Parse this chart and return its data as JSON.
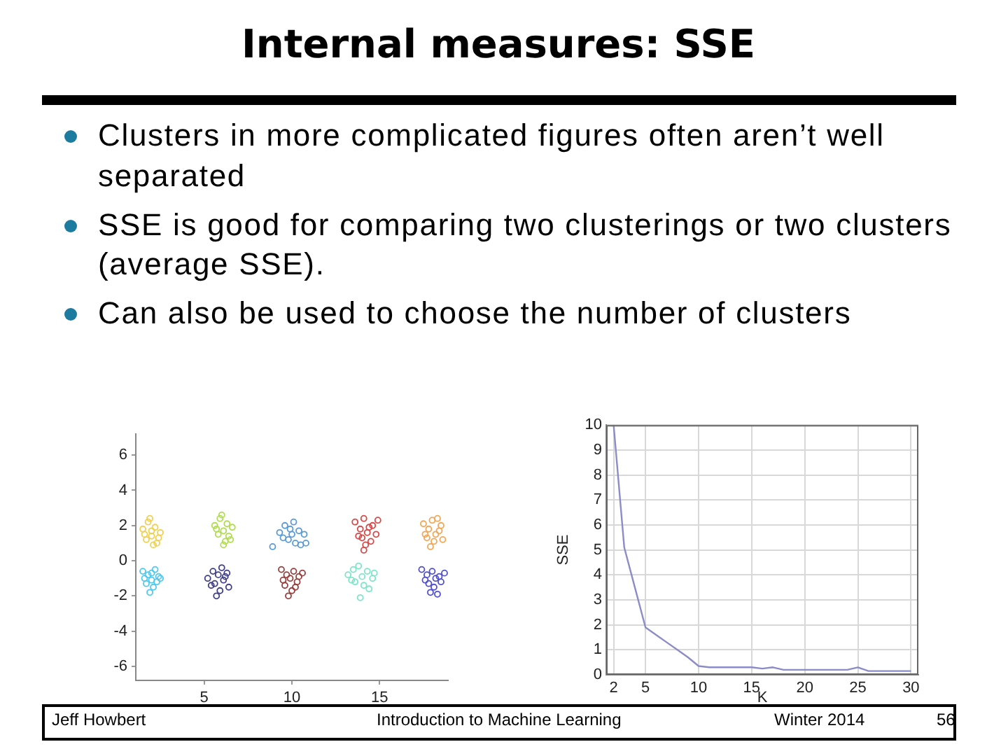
{
  "chart_data": [
    {
      "type": "other",
      "title": "Internal measures: SSE",
      "annotations": [
        "Clusters in more complicated figures often aren’t well separated",
        "SSE is good for comparing two clusterings or two clusters (average SSE).",
        "Can also be used to choose the number of clusters"
      ]
    },
    {
      "type": "scatter",
      "xlim": [
        1.1,
        18.9
      ],
      "ylim": [
        -6.8,
        7.2
      ],
      "xticks": [
        5,
        10,
        15
      ],
      "yticks": [
        -6,
        -4,
        -2,
        0,
        2,
        4,
        6
      ],
      "grid": false,
      "legend": false,
      "marker": "circle",
      "series": [
        {
          "color": "#f0d050",
          "x": [
            1.5,
            1.8,
            2.0,
            2.2,
            2.5,
            1.7,
            2.1,
            2.4,
            1.9,
            2.3,
            1.6,
            2.0
          ],
          "values": [
            1.8,
            2.2,
            1.4,
            1.9,
            1.6,
            1.2,
            0.9,
            1.3,
            2.4,
            1.0,
            1.5,
            1.7
          ]
        },
        {
          "color": "#b0dc50",
          "x": [
            5.6,
            5.9,
            6.1,
            6.3,
            6.6,
            5.8,
            6.2,
            6.4,
            6.0,
            6.5,
            5.7,
            6.1
          ],
          "values": [
            2.0,
            2.4,
            1.7,
            2.1,
            1.9,
            1.5,
            1.1,
            1.4,
            2.6,
            1.2,
            1.8,
            0.9
          ]
        },
        {
          "color": "#5b9bd5",
          "x": [
            9.3,
            9.6,
            9.9,
            10.1,
            10.4,
            10.7,
            9.8,
            10.2,
            10.5,
            9.5,
            10.0,
            10.8,
            8.9
          ],
          "values": [
            1.6,
            2.0,
            1.8,
            2.2,
            1.7,
            1.5,
            1.2,
            1.0,
            0.9,
            1.3,
            1.5,
            1.0,
            0.8
          ]
        },
        {
          "color": "#d84848",
          "x": [
            13.6,
            13.9,
            14.1,
            14.3,
            14.6,
            14.8,
            14.0,
            14.2,
            14.5,
            13.8,
            14.4,
            14.9,
            14.1
          ],
          "values": [
            2.2,
            1.8,
            2.4,
            1.6,
            2.0,
            1.5,
            1.3,
            0.9,
            1.1,
            1.4,
            1.9,
            2.3,
            0.6
          ]
        },
        {
          "color": "#f0a858",
          "x": [
            17.5,
            17.8,
            18.0,
            18.2,
            18.5,
            17.7,
            18.1,
            18.4,
            17.9,
            18.3,
            17.6,
            18.6
          ],
          "values": [
            2.1,
            1.8,
            2.3,
            1.5,
            2.0,
            1.3,
            1.1,
            1.7,
            0.8,
            2.4,
            1.5,
            1.2
          ]
        },
        {
          "color": "#50c8f0",
          "x": [
            1.5,
            1.8,
            2.0,
            2.2,
            2.5,
            1.7,
            2.1,
            2.4,
            1.9,
            2.3,
            1.6,
            2.0
          ],
          "values": [
            -0.6,
            -0.8,
            -1.1,
            -0.5,
            -1.0,
            -1.3,
            -1.5,
            -0.9,
            -1.8,
            -1.2,
            -1.0,
            -0.7
          ]
        },
        {
          "color": "#404088",
          "x": [
            5.2,
            5.5,
            5.8,
            6.0,
            6.3,
            5.6,
            6.1,
            6.4,
            5.9,
            6.2,
            5.7,
            5.4
          ],
          "values": [
            -1.0,
            -0.6,
            -0.8,
            -0.4,
            -0.7,
            -1.3,
            -1.1,
            -1.5,
            -1.7,
            -0.9,
            -2.0,
            -1.4
          ]
        },
        {
          "color": "#984040",
          "x": [
            9.4,
            9.7,
            9.9,
            10.1,
            10.3,
            9.6,
            10.0,
            10.4,
            9.8,
            10.2,
            9.5,
            10.6
          ],
          "values": [
            -0.5,
            -0.8,
            -1.0,
            -0.6,
            -1.2,
            -1.4,
            -1.7,
            -0.9,
            -2.0,
            -1.5,
            -1.1,
            -0.7
          ]
        },
        {
          "color": "#80e4c8",
          "x": [
            13.2,
            13.5,
            13.8,
            14.0,
            14.3,
            14.6,
            13.6,
            14.1,
            14.4,
            13.9,
            13.4,
            14.7
          ],
          "values": [
            -0.8,
            -0.5,
            -0.3,
            -0.9,
            -0.6,
            -1.0,
            -1.2,
            -1.4,
            -1.6,
            -2.1,
            -1.1,
            -0.7
          ]
        },
        {
          "color": "#5050d0",
          "x": [
            17.4,
            17.7,
            18.0,
            18.2,
            18.5,
            17.8,
            18.1,
            18.4,
            17.9,
            18.3,
            17.6,
            18.7
          ],
          "values": [
            -0.5,
            -0.8,
            -0.6,
            -1.0,
            -1.2,
            -1.3,
            -1.5,
            -0.9,
            -1.8,
            -1.9,
            -1.1,
            -0.7
          ]
        }
      ]
    },
    {
      "type": "line",
      "xlabel": "K",
      "ylabel": "SSE",
      "xlim": [
        1.3,
        30.7
      ],
      "ylim": [
        0,
        10
      ],
      "xticks": [
        2,
        5,
        10,
        15,
        20,
        25,
        30
      ],
      "yticks": [
        0,
        1,
        2,
        3,
        4,
        5,
        6,
        7,
        8,
        9,
        10
      ],
      "grid": true,
      "legend": false,
      "marker": "none",
      "series": [
        {
          "color": "#8c8cc8",
          "x": [
            2,
            3,
            4,
            5,
            6,
            7,
            8,
            9,
            10,
            11,
            12,
            13,
            14,
            15,
            16,
            17,
            18,
            19,
            20,
            21,
            22,
            23,
            24,
            25,
            26,
            27,
            28,
            29,
            30
          ],
          "values": [
            10,
            5.1,
            3.5,
            1.9,
            1.6,
            1.3,
            1.0,
            0.7,
            0.35,
            0.3,
            0.3,
            0.3,
            0.3,
            0.3,
            0.25,
            0.3,
            0.2,
            0.2,
            0.2,
            0.2,
            0.2,
            0.2,
            0.2,
            0.3,
            0.15,
            0.15,
            0.15,
            0.15,
            0.15
          ]
        }
      ]
    },
    {
      "type": "other",
      "annotations": [
        "Jeff Howbert",
        "Introduction to Machine Learning",
        "Winter 2014",
        "56"
      ]
    }
  ]
}
